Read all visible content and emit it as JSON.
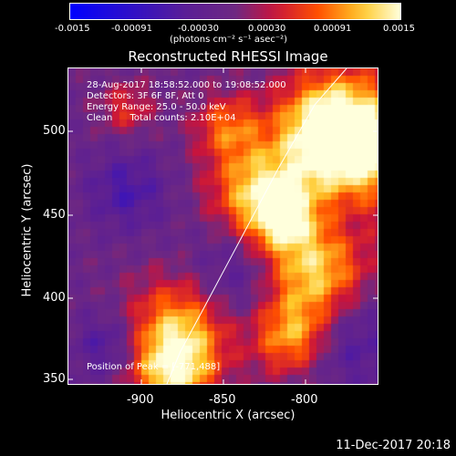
{
  "colorbar": {
    "ticks": [
      "-0.0015",
      "-0.00091",
      "-0.00030",
      "0.00030",
      "0.00091",
      "0.0015"
    ],
    "unit": "(photons cm⁻² s⁻¹ asec⁻²)",
    "range": [
      -0.0015,
      0.0015
    ]
  },
  "title": "Reconstructed RHESSI Image",
  "info": {
    "line1": "28-Aug-2017 18:58:52.000 to 19:08:52.000",
    "line2": "Detectors: 3F 6F 8F, Att 0",
    "line3": "Energy Range: 25.0 - 50.0 keV",
    "line4": "Clean      Total counts: 2.10E+04",
    "peak": "Position of Peak = [-771,488]"
  },
  "axes": {
    "xlabel": "Heliocentric X (arcsec)",
    "ylabel": "Heliocentric Y (arcsec)",
    "xticks": [
      "-900",
      "-850",
      "-800"
    ],
    "yticks": [
      "500",
      "450",
      "400",
      "350"
    ],
    "xrange": [
      -945,
      -841
    ],
    "yrange": [
      345,
      546
    ]
  },
  "timestamp": "11-Dec-2017 20:18",
  "colors": {
    "background": "#000000",
    "negative_low": "#0000ff",
    "zero_mid": "#6a2a9a",
    "positive_high": "#ffffd0"
  }
}
